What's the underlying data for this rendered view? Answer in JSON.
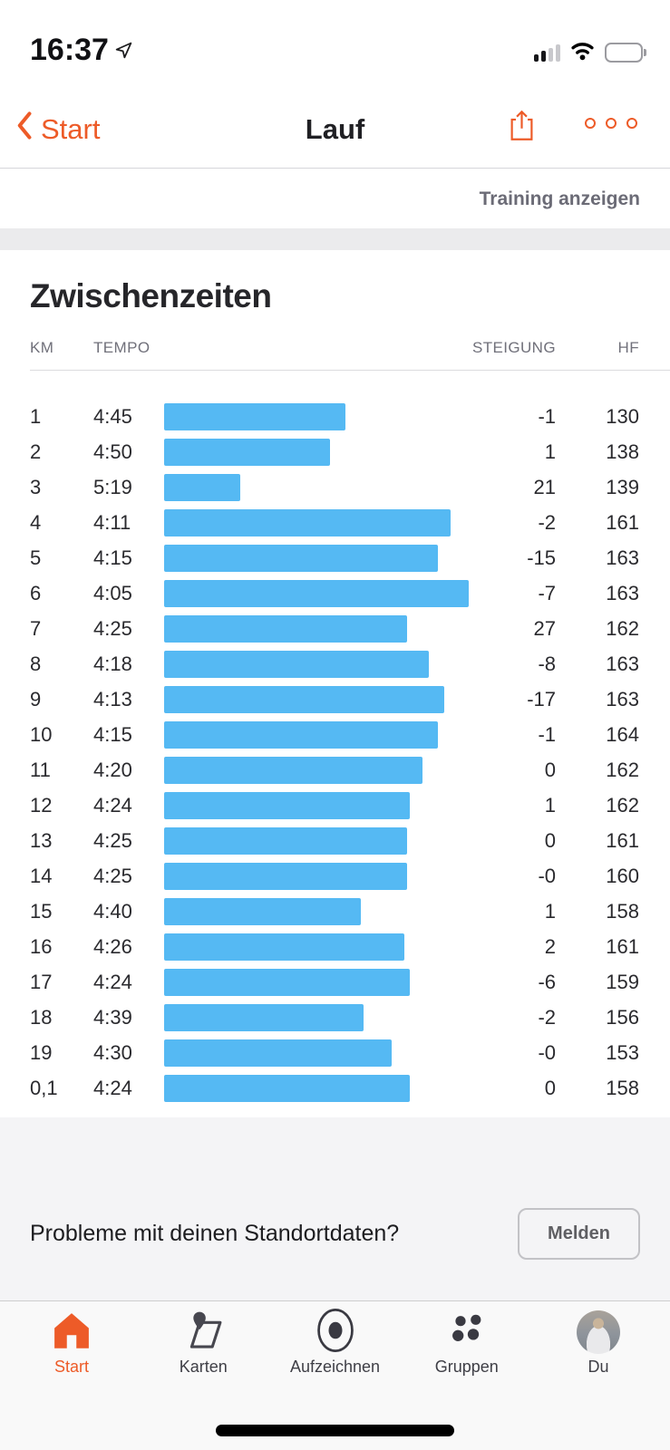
{
  "status_bar": {
    "time": "16:37",
    "location_icon": "navigation-arrow",
    "signal_bars_filled": 2,
    "signal_bars_total": 4,
    "wifi": "full",
    "battery_percent": 70
  },
  "nav_bar": {
    "back_label": "Start",
    "title": "Lauf"
  },
  "training_link": {
    "label": "Training anzeigen"
  },
  "splits": {
    "heading": "Zwischenzeiten",
    "columns": {
      "km": "KM",
      "tempo": "TEMPO",
      "steigung": "STEIGUNG",
      "hf": "HF"
    },
    "bar_color": "#55b9f3",
    "rows": [
      {
        "km": "1",
        "tempo": "4:45",
        "tempo_seconds": 285,
        "steigung": "-1",
        "hf": "130"
      },
      {
        "km": "2",
        "tempo": "4:50",
        "tempo_seconds": 290,
        "steigung": "1",
        "hf": "138"
      },
      {
        "km": "3",
        "tempo": "5:19",
        "tempo_seconds": 319,
        "steigung": "21",
        "hf": "139"
      },
      {
        "km": "4",
        "tempo": "4:11",
        "tempo_seconds": 251,
        "steigung": "-2",
        "hf": "161"
      },
      {
        "km": "5",
        "tempo": "4:15",
        "tempo_seconds": 255,
        "steigung": "-15",
        "hf": "163"
      },
      {
        "km": "6",
        "tempo": "4:05",
        "tempo_seconds": 245,
        "steigung": "-7",
        "hf": "163"
      },
      {
        "km": "7",
        "tempo": "4:25",
        "tempo_seconds": 265,
        "steigung": "27",
        "hf": "162"
      },
      {
        "km": "8",
        "tempo": "4:18",
        "tempo_seconds": 258,
        "steigung": "-8",
        "hf": "163"
      },
      {
        "km": "9",
        "tempo": "4:13",
        "tempo_seconds": 253,
        "steigung": "-17",
        "hf": "163"
      },
      {
        "km": "10",
        "tempo": "4:15",
        "tempo_seconds": 255,
        "steigung": "-1",
        "hf": "164"
      },
      {
        "km": "11",
        "tempo": "4:20",
        "tempo_seconds": 260,
        "steigung": "0",
        "hf": "162"
      },
      {
        "km": "12",
        "tempo": "4:24",
        "tempo_seconds": 264,
        "steigung": "1",
        "hf": "162"
      },
      {
        "km": "13",
        "tempo": "4:25",
        "tempo_seconds": 265,
        "steigung": "0",
        "hf": "161"
      },
      {
        "km": "14",
        "tempo": "4:25",
        "tempo_seconds": 265,
        "steigung": "-0",
        "hf": "160"
      },
      {
        "km": "15",
        "tempo": "4:40",
        "tempo_seconds": 280,
        "steigung": "1",
        "hf": "158"
      },
      {
        "km": "16",
        "tempo": "4:26",
        "tempo_seconds": 266,
        "steigung": "2",
        "hf": "161"
      },
      {
        "km": "17",
        "tempo": "4:24",
        "tempo_seconds": 264,
        "steigung": "-6",
        "hf": "159"
      },
      {
        "km": "18",
        "tempo": "4:39",
        "tempo_seconds": 279,
        "steigung": "-2",
        "hf": "156"
      },
      {
        "km": "19",
        "tempo": "4:30",
        "tempo_seconds": 270,
        "steigung": "-0",
        "hf": "153"
      },
      {
        "km": "0,1",
        "tempo": "4:24",
        "tempo_seconds": 264,
        "steigung": "0",
        "hf": "158"
      }
    ]
  },
  "report": {
    "question": "Probleme mit deinen Standortdaten?",
    "button_label": "Melden"
  },
  "tab_bar": {
    "items": [
      {
        "label": "Start",
        "icon": "home-icon",
        "active": true
      },
      {
        "label": "Karten",
        "icon": "map-icon",
        "active": false
      },
      {
        "label": "Aufzeichnen",
        "icon": "record-icon",
        "active": false
      },
      {
        "label": "Gruppen",
        "icon": "groups-icon",
        "active": false
      },
      {
        "label": "Du",
        "icon": "avatar",
        "active": false
      }
    ]
  },
  "colors": {
    "accent": "#ed5b28",
    "bar": "#55b9f3"
  }
}
